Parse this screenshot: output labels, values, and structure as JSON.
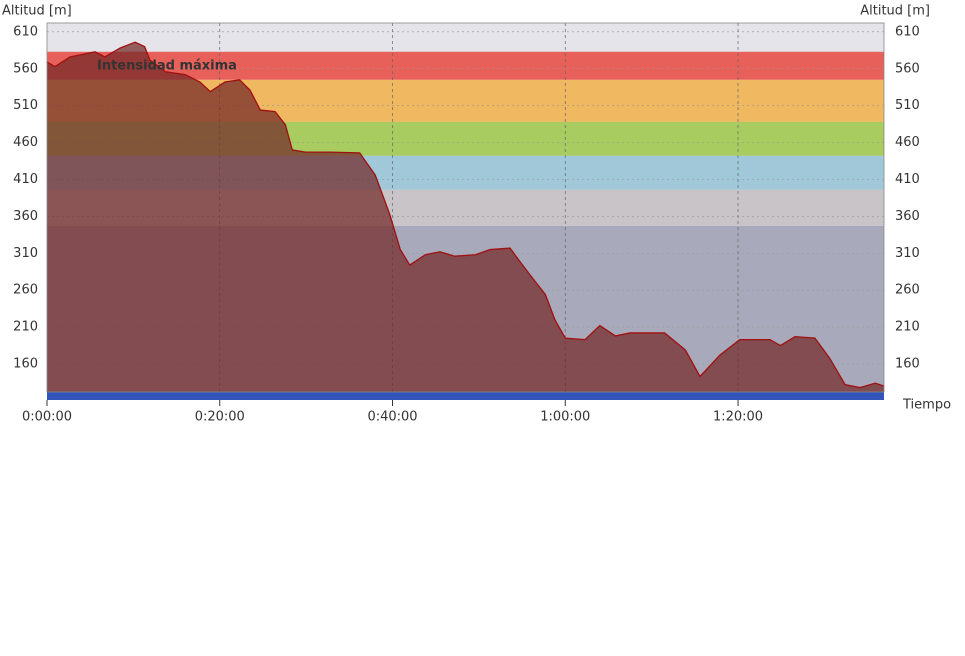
{
  "chart_data": {
    "type": "area",
    "y_label": "Altitud [m]",
    "y2_label": "Altitud [m]",
    "x_label": "Tiempo",
    "x": [
      0,
      0.93,
      2.66,
      5.56,
      6.7,
      8.45,
      10.2,
      11.3,
      11.9,
      13.7,
      16.0,
      17.7,
      18.9,
      20.6,
      22.3,
      23.5,
      24.7,
      26.4,
      27.6,
      28.4,
      29.9,
      32.8,
      36.2,
      38.0,
      39.7,
      40.9,
      42.0,
      43.8,
      45.5,
      47.2,
      49.6,
      51.3,
      53.6,
      54.8,
      55.9,
      57.7,
      58.8,
      60.0,
      62.3,
      64.0,
      65.8,
      67.5,
      71.5,
      73.9,
      75.6,
      77.9,
      80.2,
      83.7,
      84.9,
      86.6,
      88.9,
      90.6,
      92.4,
      94.1,
      95.9,
      96.9
    ],
    "y": [
      569,
      563,
      576,
      583,
      576,
      588,
      596,
      590,
      572,
      556,
      552,
      542,
      529,
      542,
      545,
      531,
      504,
      502,
      484,
      450,
      447,
      447,
      446,
      416,
      362,
      315,
      294,
      308,
      312,
      306,
      308,
      315,
      317,
      298,
      281,
      254,
      220,
      195,
      193,
      212,
      198,
      202,
      202,
      179,
      143,
      172,
      193,
      193,
      185,
      197,
      195,
      168,
      132,
      128,
      134,
      130
    ],
    "color": "#a01010",
    "xlim": [
      0,
      96.9
    ],
    "ylim": [
      122,
      622
    ],
    "xticks": [
      {
        "value": 0,
        "label": "0:00:00"
      },
      {
        "value": 20,
        "label": "0:20:00"
      },
      {
        "value": 40,
        "label": "0:40:00"
      },
      {
        "value": 60,
        "label": "1:00:00"
      },
      {
        "value": 80,
        "label": "1:20:00"
      }
    ],
    "yticks": [
      610,
      560,
      510,
      460,
      410,
      360,
      310,
      260,
      210,
      160
    ],
    "zones": [
      {
        "name": "Intensidad máxima",
        "from": 545,
        "to": 583,
        "color": "#e8605a"
      },
      {
        "from": 488,
        "to": 545,
        "color": "#f0b860"
      },
      {
        "from": 442,
        "to": 488,
        "color": "#a8cc60"
      },
      {
        "from": 396,
        "to": 442,
        "color": "#a0c8d8"
      },
      {
        "from": 347,
        "to": 396,
        "color": "#c8c4c8"
      }
    ],
    "grid": true
  }
}
